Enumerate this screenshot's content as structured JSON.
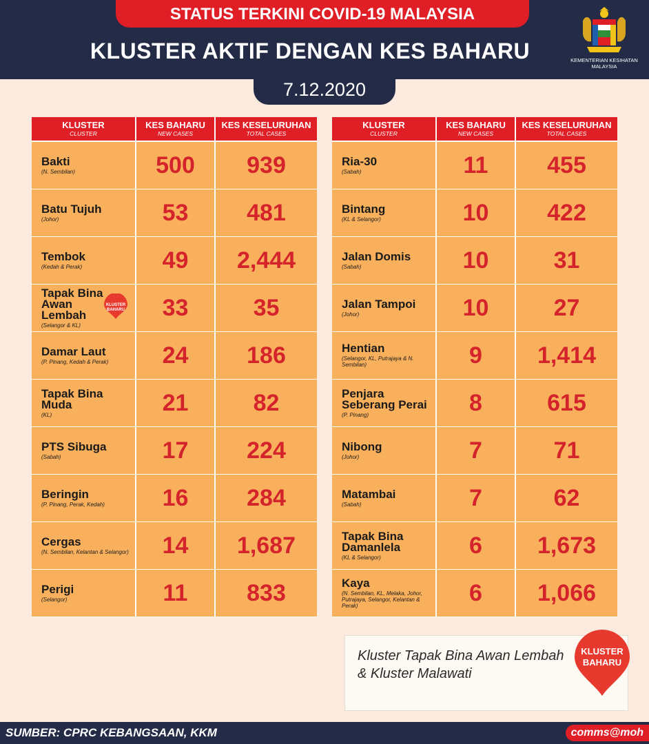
{
  "header": {
    "status_title": "STATUS TERKINI COVID-19 MALAYSIA",
    "main_title": "KLUSTER AKTIF DENGAN KES BAHARU",
    "date": "7.12.2020",
    "ministry": "KEMENTERIAN KESIHATAN MALAYSIA"
  },
  "columns": {
    "cluster": "KLUSTER",
    "cluster_en": "CLUSTER",
    "new_cases": "KES BAHARU",
    "new_cases_en": "NEW CASES",
    "total_cases": "KES KESELURUHAN",
    "total_cases_en": "TOTAL CASES"
  },
  "left_table": [
    {
      "name": "Bakti",
      "location": "(N. Sembilan)",
      "new": "500",
      "total": "939"
    },
    {
      "name": "Batu Tujuh",
      "location": "(Johor)",
      "new": "53",
      "total": "481"
    },
    {
      "name": "Tembok",
      "location": "(Kedah & Perak)",
      "new": "49",
      "total": "2,444"
    },
    {
      "name": "Tapak Bina Awan Lembah",
      "location": "(Selangor & KL)",
      "new": "33",
      "total": "35",
      "badge": "KLUSTER BAHARU"
    },
    {
      "name": "Damar Laut",
      "location": "(P. Pinang, Kedah & Perak)",
      "new": "24",
      "total": "186"
    },
    {
      "name": "Tapak Bina Muda",
      "location": "(KL)",
      "new": "21",
      "total": "82"
    },
    {
      "name": "PTS Sibuga",
      "location": "(Sabah)",
      "new": "17",
      "total": "224"
    },
    {
      "name": "Beringin",
      "location": "(P. Pinang, Perak, Kedah)",
      "new": "16",
      "total": "284"
    },
    {
      "name": "Cergas",
      "location": "(N. Sembilan, Kelantan & Selangor)",
      "new": "14",
      "total": "1,687"
    },
    {
      "name": "Perigi",
      "location": "(Selangor)",
      "new": "11",
      "total": "833"
    }
  ],
  "right_table": [
    {
      "name": "Ria-30",
      "location": "(Sabah)",
      "new": "11",
      "total": "455"
    },
    {
      "name": "Bintang",
      "location": "(KL & Selangor)",
      "new": "10",
      "total": "422"
    },
    {
      "name": "Jalan Domis",
      "location": "(Sabah)",
      "new": "10",
      "total": "31"
    },
    {
      "name": "Jalan Tampoi",
      "location": "(Johor)",
      "new": "10",
      "total": "27"
    },
    {
      "name": "Hentian",
      "location": "(Selangor, KL, Putrajaya & N. Sembilan)",
      "new": "9",
      "total": "1,414"
    },
    {
      "name": "Penjara Seberang Perai",
      "location": "(P. Pinang)",
      "new": "8",
      "total": "615"
    },
    {
      "name": "Nibong",
      "location": "(Johor)",
      "new": "7",
      "total": "71"
    },
    {
      "name": "Matambai",
      "location": "(Sabah)",
      "new": "7",
      "total": "62"
    },
    {
      "name": "Tapak Bina Damanlela",
      "location": "(KL & Selangor)",
      "new": "6",
      "total": "1,673"
    },
    {
      "name": "Kaya",
      "location": "(N. Sembilan, KL, Melaka, Johor, Putrajaya, Selangor, Kelantan & Perak)",
      "new": "6",
      "total": "1,066"
    }
  ],
  "note": {
    "text": "Kluster Tapak Bina Awan Lembah & Kluster Malawati",
    "badge_line1": "KLUSTER",
    "badge_line2": "BAHARU"
  },
  "footer": {
    "source": "SUMBER: CPRC KEBANGSAAN, KKM",
    "tag": "comms@moh"
  },
  "colors": {
    "navy": "#232b47",
    "red": "#e01e26",
    "cell_orange": "#f9b05d",
    "number_red": "#d5232b",
    "background": "#fbeadd"
  }
}
